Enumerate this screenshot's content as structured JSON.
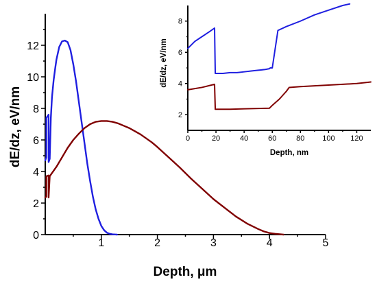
{
  "chart_data": [
    {
      "type": "line",
      "xlabel": "Depth, μm",
      "ylabel": "dE/dz, eV/nm",
      "xlim": [
        0,
        5
      ],
      "ylim": [
        0,
        14
      ],
      "xticks": [
        1,
        2,
        3,
        4,
        5
      ],
      "yticks": [
        0,
        2,
        4,
        6,
        8,
        10,
        12
      ],
      "series": [
        {
          "color": "#1f1fe0",
          "x": [
            0.0,
            0.02,
            0.02,
            0.06,
            0.06,
            0.08,
            0.1,
            0.12,
            0.15,
            0.18,
            0.2,
            0.25,
            0.3,
            0.35,
            0.4,
            0.45,
            0.5,
            0.55,
            0.6,
            0.65,
            0.7,
            0.75,
            0.8,
            0.85,
            0.9,
            0.95,
            1.0,
            1.05,
            1.1,
            1.15,
            1.2,
            1.25,
            1.28
          ],
          "values": [
            4.7,
            4.9,
            7.4,
            7.6,
            4.6,
            4.8,
            7.4,
            8.7,
            9.8,
            10.6,
            11.1,
            11.9,
            12.25,
            12.3,
            12.2,
            11.7,
            10.8,
            9.7,
            8.4,
            7.1,
            5.8,
            4.5,
            3.4,
            2.4,
            1.6,
            1.0,
            0.55,
            0.28,
            0.12,
            0.05,
            0.02,
            0.01,
            0.0
          ]
        },
        {
          "color": "#800000",
          "x": [
            0.0,
            0.02,
            0.02,
            0.06,
            0.06,
            0.08,
            0.2,
            0.3,
            0.4,
            0.5,
            0.6,
            0.7,
            0.8,
            0.9,
            1.0,
            1.1,
            1.2,
            1.3,
            1.4,
            1.5,
            1.6,
            1.7,
            1.8,
            1.9,
            2.0,
            2.2,
            2.4,
            2.6,
            2.8,
            3.0,
            3.2,
            3.4,
            3.6,
            3.8,
            3.9,
            4.0,
            4.1,
            4.2,
            4.25
          ],
          "values": [
            2.35,
            2.4,
            3.7,
            3.75,
            2.35,
            3.7,
            4.3,
            4.9,
            5.5,
            6.0,
            6.4,
            6.75,
            7.0,
            7.15,
            7.2,
            7.2,
            7.15,
            7.05,
            6.9,
            6.75,
            6.55,
            6.35,
            6.1,
            5.85,
            5.55,
            4.9,
            4.25,
            3.55,
            2.9,
            2.25,
            1.7,
            1.15,
            0.7,
            0.35,
            0.2,
            0.1,
            0.05,
            0.02,
            0.0
          ]
        }
      ]
    },
    {
      "type": "line",
      "xlabel": "Depth, nm",
      "ylabel": "dE/dz, eV/nm",
      "xlim": [
        0,
        130
      ],
      "ylim": [
        1,
        9
      ],
      "xticks": [
        0,
        20,
        40,
        60,
        80,
        100,
        120
      ],
      "yticks": [
        2,
        4,
        6,
        8
      ],
      "series": [
        {
          "color": "#1f1fe0",
          "x": [
            0,
            5,
            10,
            15,
            19,
            19.5,
            20,
            25,
            30,
            35,
            40,
            45,
            50,
            55,
            58,
            58.5,
            60,
            62,
            64,
            70,
            80,
            90,
            100,
            110,
            115
          ],
          "values": [
            6.25,
            6.7,
            7.0,
            7.3,
            7.55,
            4.65,
            4.65,
            4.65,
            4.7,
            4.7,
            4.75,
            4.8,
            4.85,
            4.9,
            4.95,
            5.0,
            5.0,
            6.2,
            7.4,
            7.65,
            8.0,
            8.4,
            8.7,
            9.0,
            9.1
          ]
        },
        {
          "color": "#800000",
          "x": [
            0,
            10,
            19,
            19.5,
            20,
            30,
            40,
            50,
            58,
            60,
            65,
            70,
            72,
            80,
            90,
            100,
            110,
            120,
            130
          ],
          "values": [
            3.6,
            3.75,
            3.95,
            2.35,
            2.35,
            2.35,
            2.38,
            2.4,
            2.42,
            2.6,
            3.0,
            3.5,
            3.75,
            3.8,
            3.85,
            3.9,
            3.95,
            4.0,
            4.1
          ]
        }
      ]
    }
  ]
}
